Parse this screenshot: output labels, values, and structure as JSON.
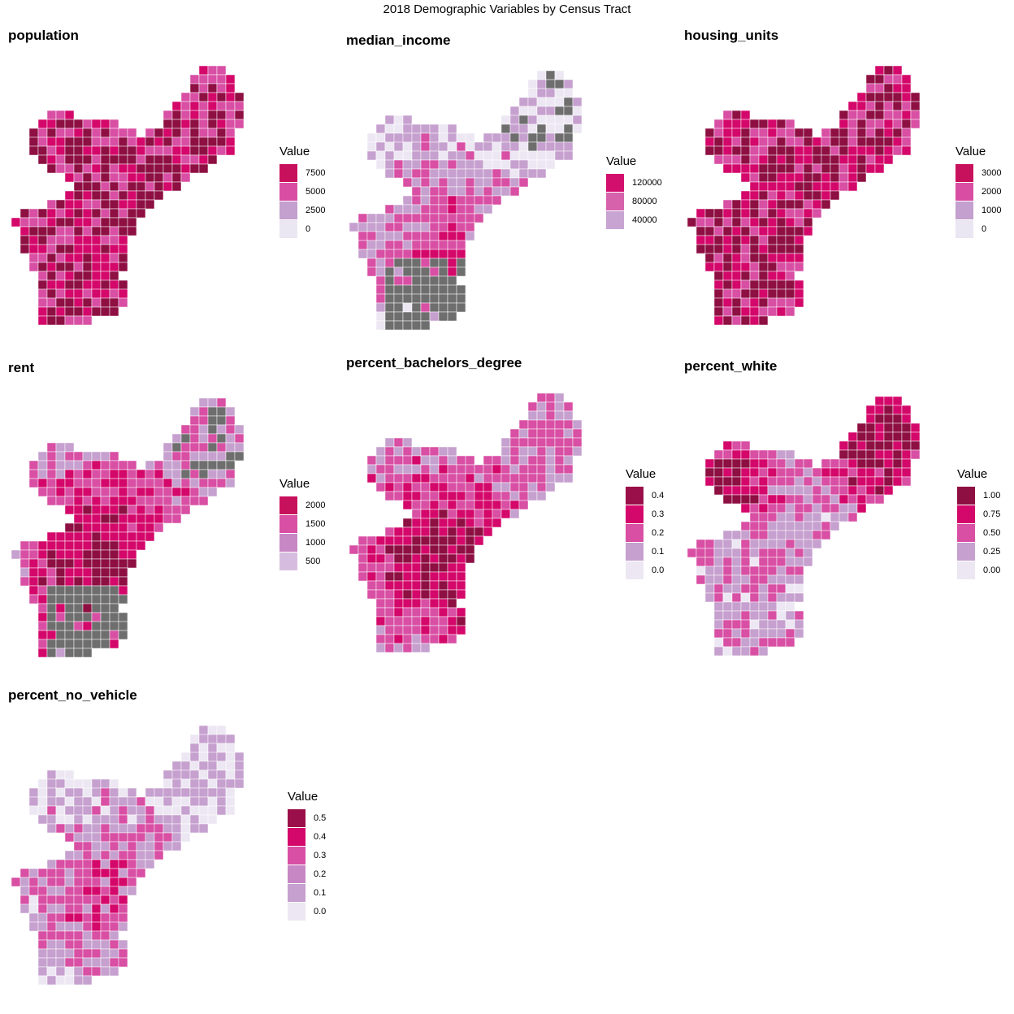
{
  "title": "2018 Demographic Variables by Census Tract",
  "legend_title": "Value",
  "shared_palette": [
    "#ece7f2",
    "#c6a0cf",
    "#d84fa4",
    "#d4086a",
    "#8e0f42"
  ],
  "missing_color": "#6e6e6e",
  "panels": [
    {
      "name": "population",
      "legend": [
        "7500",
        "5000",
        "2500",
        "0"
      ],
      "colors": [
        "#c8115c",
        "#d94ea2",
        "#c3a0cd",
        "#eae6f2"
      ],
      "tint": "high",
      "missing": false
    },
    {
      "name": "median_income",
      "legend": [
        "120000",
        "80000",
        "40000"
      ],
      "colors": [
        "#d30f6e",
        "#d662ac",
        "#c7a4d2"
      ],
      "tint": "low",
      "missing": true
    },
    {
      "name": "housing_units",
      "legend": [
        "3000",
        "2000",
        "1000",
        "0"
      ],
      "colors": [
        "#c8115c",
        "#d94ea2",
        "#c3a0cd",
        "#eae6f2"
      ],
      "tint": "high",
      "missing": false
    },
    {
      "name": "rent",
      "legend": [
        "2000",
        "1500",
        "1000",
        "500"
      ],
      "colors": [
        "#c8115c",
        "#d84fa4",
        "#c787c4",
        "#d6bddf"
      ],
      "tint": "mid",
      "missing": true
    },
    {
      "name": "percent_bachelors_degree",
      "legend": [
        "0.4",
        "0.3",
        "0.2",
        "0.1",
        "0.0"
      ],
      "colors": [
        "#9a0f49",
        "#d4086a",
        "#d84fa4",
        "#c6a0cf",
        "#ece7f2"
      ],
      "tint": "mid",
      "missing": false
    },
    {
      "name": "percent_white",
      "legend": [
        "1.00",
        "0.75",
        "0.50",
        "0.25",
        "0.00"
      ],
      "colors": [
        "#8e0f42",
        "#d4086a",
        "#d84fa4",
        "#c6a0cf",
        "#ece7f2"
      ],
      "tint": "split",
      "missing": false
    },
    {
      "name": "percent_no_vehicle",
      "legend": [
        "0.5",
        "0.4",
        "0.3",
        "0.2",
        "0.1",
        "0.0"
      ],
      "colors": [
        "#9a0f49",
        "#d4086a",
        "#d84fa4",
        "#c787c4",
        "#c6a0cf",
        "#ece7f2"
      ],
      "tint": "low",
      "missing": false
    }
  ]
}
